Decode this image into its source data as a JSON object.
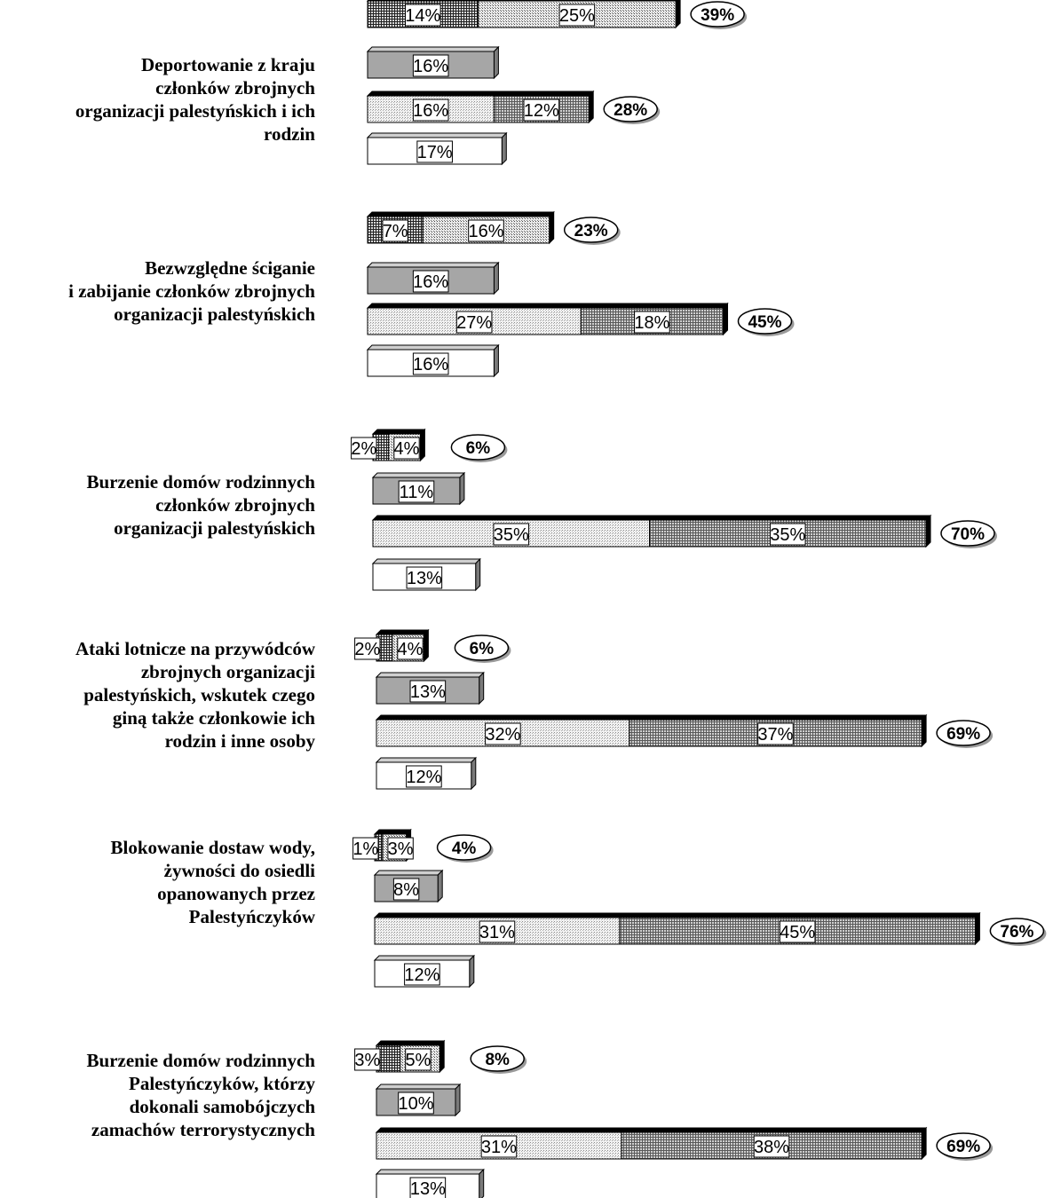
{
  "chart_data": {
    "type": "bar",
    "stacked": true,
    "orientation": "horizontal",
    "series_styles": [
      {
        "pattern": "dense-grid"
      },
      {
        "pattern": "light-grid"
      },
      {
        "pattern": "solid-gray"
      },
      {
        "pattern": "light-dots"
      },
      {
        "pattern": "medium-grid"
      },
      {
        "pattern": "white"
      }
    ],
    "categories": [
      {
        "label_lines": [
          "Deportowanie z kraju",
          "członków zbrojnych",
          "organizacji palestyńskich i ich",
          "rodzin"
        ],
        "bars": [
          {
            "segments": [
              {
                "value": 14,
                "label": "14%",
                "pattern": "dense-grid"
              },
              {
                "value": 25,
                "label": "25%",
                "pattern": "light-grid"
              }
            ],
            "total_label": "39%"
          },
          {
            "segments": [
              {
                "value": 16,
                "label": "16%",
                "pattern": "solid-gray"
              }
            ],
            "total_label": ""
          },
          {
            "segments": [
              {
                "value": 16,
                "label": "16%",
                "pattern": "light-dots"
              },
              {
                "value": 12,
                "label": "12%",
                "pattern": "medium-grid"
              }
            ],
            "total_label": "28%"
          },
          {
            "segments": [
              {
                "value": 17,
                "label": "17%",
                "pattern": "white"
              }
            ],
            "total_label": ""
          }
        ]
      },
      {
        "label_lines": [
          "Bezwzględne ściganie",
          "i zabijanie członków zbrojnych",
          "organizacji palestyńskich"
        ],
        "bars": [
          {
            "segments": [
              {
                "value": 7,
                "label": "7%",
                "pattern": "dense-grid"
              },
              {
                "value": 16,
                "label": "16%",
                "pattern": "light-grid"
              }
            ],
            "total_label": "23%"
          },
          {
            "segments": [
              {
                "value": 16,
                "label": "16%",
                "pattern": "solid-gray"
              }
            ],
            "total_label": ""
          },
          {
            "segments": [
              {
                "value": 27,
                "label": "27%",
                "pattern": "light-dots"
              },
              {
                "value": 18,
                "label": "18%",
                "pattern": "medium-grid"
              }
            ],
            "total_label": "45%"
          },
          {
            "segments": [
              {
                "value": 16,
                "label": "16%",
                "pattern": "white"
              }
            ],
            "total_label": ""
          }
        ]
      },
      {
        "label_lines": [
          "Burzenie domów rodzinnych",
          "członków zbrojnych",
          "organizacji palestyńskich"
        ],
        "bars": [
          {
            "segments": [
              {
                "value": 2,
                "label": "2%",
                "pattern": "dense-grid"
              },
              {
                "value": 4,
                "label": "4%",
                "pattern": "light-grid"
              }
            ],
            "total_label": "6%"
          },
          {
            "segments": [
              {
                "value": 11,
                "label": "11%",
                "pattern": "solid-gray"
              }
            ],
            "total_label": ""
          },
          {
            "segments": [
              {
                "value": 35,
                "label": "35%",
                "pattern": "light-dots"
              },
              {
                "value": 35,
                "label": "35%",
                "pattern": "medium-grid"
              }
            ],
            "total_label": "70%"
          },
          {
            "segments": [
              {
                "value": 13,
                "label": "13%",
                "pattern": "white"
              }
            ],
            "total_label": ""
          }
        ]
      },
      {
        "label_lines": [
          "Ataki lotnicze na przywódców",
          "zbrojnych organizacji",
          "palestyńskich, wskutek czego",
          "giną także członkowie ich",
          "rodzin i inne osoby"
        ],
        "bars": [
          {
            "segments": [
              {
                "value": 2,
                "label": "2%",
                "pattern": "dense-grid"
              },
              {
                "value": 4,
                "label": "4%",
                "pattern": "light-grid"
              }
            ],
            "total_label": "6%"
          },
          {
            "segments": [
              {
                "value": 13,
                "label": "13%",
                "pattern": "solid-gray"
              }
            ],
            "total_label": ""
          },
          {
            "segments": [
              {
                "value": 32,
                "label": "32%",
                "pattern": "light-dots"
              },
              {
                "value": 37,
                "label": "37%",
                "pattern": "medium-grid"
              }
            ],
            "total_label": "69%"
          },
          {
            "segments": [
              {
                "value": 12,
                "label": "12%",
                "pattern": "white"
              }
            ],
            "total_label": ""
          }
        ]
      },
      {
        "label_lines": [
          "Blokowanie dostaw wody,",
          "żywności do osiedli",
          "opanowanych przez",
          "Palestyńczyków"
        ],
        "bars": [
          {
            "segments": [
              {
                "value": 1,
                "label": "1%",
                "pattern": "dense-grid"
              },
              {
                "value": 3,
                "label": "3%",
                "pattern": "light-grid"
              }
            ],
            "total_label": "4%"
          },
          {
            "segments": [
              {
                "value": 8,
                "label": "8%",
                "pattern": "solid-gray"
              }
            ],
            "total_label": ""
          },
          {
            "segments": [
              {
                "value": 31,
                "label": "31%",
                "pattern": "light-dots"
              },
              {
                "value": 45,
                "label": "45%",
                "pattern": "medium-grid"
              }
            ],
            "total_label": "76%"
          },
          {
            "segments": [
              {
                "value": 12,
                "label": "12%",
                "pattern": "white"
              }
            ],
            "total_label": ""
          }
        ]
      },
      {
        "label_lines": [
          "Burzenie domów rodzinnych",
          "Palestyńczyków, którzy",
          "dokonali samobójczych",
          "zamachów terrorystycznych"
        ],
        "bars": [
          {
            "segments": [
              {
                "value": 3,
                "label": "3%",
                "pattern": "dense-grid"
              },
              {
                "value": 5,
                "label": "5%",
                "pattern": "light-grid"
              }
            ],
            "total_label": "8%"
          },
          {
            "segments": [
              {
                "value": 10,
                "label": "10%",
                "pattern": "solid-gray"
              }
            ],
            "total_label": ""
          },
          {
            "segments": [
              {
                "value": 31,
                "label": "31%",
                "pattern": "light-dots"
              },
              {
                "value": 38,
                "label": "38%",
                "pattern": "medium-grid"
              }
            ],
            "total_label": "69%"
          },
          {
            "segments": [
              {
                "value": 13,
                "label": "13%",
                "pattern": "white"
              }
            ],
            "total_label": ""
          }
        ]
      }
    ]
  }
}
